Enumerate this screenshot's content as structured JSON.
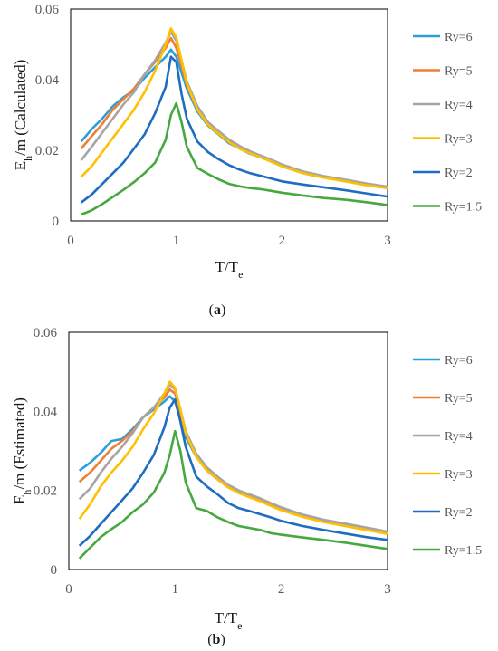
{
  "chart_data": [
    {
      "type": "line",
      "xlabel": "T/T",
      "xlabel_sub": "e",
      "ylabel": "E",
      "ylabel_sub": "h",
      "ylabel_rest": "/m (Calculated)",
      "caption": [
        "(",
        "a",
        ")"
      ],
      "xlim": [
        0,
        3
      ],
      "ylim": [
        0,
        0.06
      ],
      "xticks": [
        "0",
        "1",
        "2",
        "3"
      ],
      "yticks": [
        "0",
        "0.02",
        "0.04",
        "0.06"
      ],
      "grid": false,
      "legend_position": "right",
      "series": [
        {
          "name": "Ry=6",
          "color": "#2e9fd8",
          "x": [
            0.1,
            0.2,
            0.3,
            0.4,
            0.5,
            0.6,
            0.7,
            0.8,
            0.9,
            0.95,
            1.0,
            1.05,
            1.1,
            1.2,
            1.3,
            1.4,
            1.5,
            1.6,
            1.7,
            1.8,
            1.9,
            2.0,
            2.2,
            2.4,
            2.6,
            2.8,
            3.0
          ],
          "y": [
            0.0225,
            0.026,
            0.029,
            0.0325,
            0.035,
            0.037,
            0.0405,
            0.0435,
            0.0465,
            0.0485,
            0.0465,
            0.042,
            0.0375,
            0.031,
            0.027,
            0.0245,
            0.022,
            0.0205,
            0.019,
            0.018,
            0.0168,
            0.0155,
            0.0135,
            0.0123,
            0.0113,
            0.0102,
            0.0093
          ]
        },
        {
          "name": "Ry=5",
          "color": "#f07f33",
          "x": [
            0.1,
            0.2,
            0.3,
            0.4,
            0.5,
            0.6,
            0.7,
            0.8,
            0.9,
            0.95,
            1.0,
            1.05,
            1.1,
            1.2,
            1.3,
            1.4,
            1.5,
            1.6,
            1.7,
            1.8,
            1.9,
            2.0,
            2.2,
            2.4,
            2.6,
            2.8,
            3.0
          ],
          "y": [
            0.0205,
            0.024,
            0.0275,
            0.0315,
            0.0345,
            0.0375,
            0.0415,
            0.045,
            0.049,
            0.0518,
            0.049,
            0.044,
            0.0385,
            0.0315,
            0.0275,
            0.025,
            0.0225,
            0.0208,
            0.0193,
            0.0182,
            0.017,
            0.0157,
            0.0137,
            0.0125,
            0.0115,
            0.0104,
            0.0095
          ]
        },
        {
          "name": "Ry=4",
          "color": "#a5a5a5",
          "x": [
            0.1,
            0.2,
            0.3,
            0.4,
            0.5,
            0.6,
            0.7,
            0.8,
            0.9,
            0.95,
            1.0,
            1.05,
            1.1,
            1.2,
            1.3,
            1.4,
            1.5,
            1.6,
            1.7,
            1.8,
            1.9,
            2.0,
            2.2,
            2.4,
            2.6,
            2.8,
            3.0
          ],
          "y": [
            0.0172,
            0.021,
            0.025,
            0.029,
            0.033,
            0.0365,
            0.0415,
            0.0455,
            0.0505,
            0.0535,
            0.051,
            0.0455,
            0.0395,
            0.0325,
            0.028,
            0.0255,
            0.023,
            0.0212,
            0.0197,
            0.0185,
            0.0173,
            0.016,
            0.014,
            0.0127,
            0.0117,
            0.0106,
            0.0097
          ]
        },
        {
          "name": "Ry=3",
          "color": "#ffc000",
          "x": [
            0.1,
            0.2,
            0.3,
            0.4,
            0.5,
            0.6,
            0.7,
            0.8,
            0.9,
            0.95,
            1.0,
            1.05,
            1.1,
            1.2,
            1.3,
            1.4,
            1.5,
            1.6,
            1.7,
            1.8,
            1.9,
            2.0,
            2.2,
            2.4,
            2.6,
            2.8,
            3.0
          ],
          "y": [
            0.0125,
            0.0155,
            0.0195,
            0.0235,
            0.0275,
            0.0315,
            0.0365,
            0.0425,
            0.05,
            0.0545,
            0.052,
            0.0455,
            0.039,
            0.0315,
            0.0272,
            0.0247,
            0.0223,
            0.0205,
            0.0191,
            0.018,
            0.0168,
            0.0155,
            0.0135,
            0.0122,
            0.0112,
            0.0101,
            0.0093
          ]
        },
        {
          "name": "Ry=2",
          "color": "#1f6dc0",
          "x": [
            0.1,
            0.2,
            0.3,
            0.4,
            0.5,
            0.6,
            0.7,
            0.8,
            0.9,
            0.95,
            1.0,
            1.05,
            1.1,
            1.2,
            1.3,
            1.4,
            1.5,
            1.6,
            1.7,
            1.8,
            1.9,
            2.0,
            2.2,
            2.4,
            2.6,
            2.8,
            3.0
          ],
          "y": [
            0.0052,
            0.0075,
            0.0105,
            0.0135,
            0.0165,
            0.0205,
            0.0245,
            0.0305,
            0.038,
            0.0465,
            0.045,
            0.036,
            0.029,
            0.0225,
            0.0195,
            0.0175,
            0.0158,
            0.0145,
            0.0135,
            0.0128,
            0.012,
            0.0112,
            0.0103,
            0.0095,
            0.0087,
            0.0078,
            0.0069
          ]
        },
        {
          "name": "Ry=1.5",
          "color": "#46a83e",
          "x": [
            0.1,
            0.2,
            0.3,
            0.4,
            0.5,
            0.6,
            0.7,
            0.8,
            0.9,
            0.95,
            1.0,
            1.05,
            1.1,
            1.2,
            1.3,
            1.4,
            1.5,
            1.6,
            1.7,
            1.8,
            1.9,
            2.0,
            2.2,
            2.4,
            2.6,
            2.8,
            3.0
          ],
          "y": [
            0.0018,
            0.003,
            0.0048,
            0.0068,
            0.0088,
            0.011,
            0.0135,
            0.0165,
            0.023,
            0.03,
            0.0333,
            0.028,
            0.021,
            0.015,
            0.0133,
            0.0118,
            0.0105,
            0.0098,
            0.0093,
            0.009,
            0.0085,
            0.008,
            0.0072,
            0.0065,
            0.006,
            0.0053,
            0.0045
          ]
        }
      ]
    },
    {
      "type": "line",
      "xlabel": "T/T",
      "xlabel_sub": "e",
      "ylabel": "E",
      "ylabel_sub": "h",
      "ylabel_rest": "/m (Estimated)",
      "caption": [
        "(",
        "b",
        ")"
      ],
      "xlim": [
        0,
        3
      ],
      "ylim": [
        0,
        0.06
      ],
      "xticks": [
        "0",
        "1",
        "2",
        "3"
      ],
      "yticks": [
        "0",
        "0.02",
        "0.04",
        "0.06"
      ],
      "grid": false,
      "legend_position": "right",
      "series": [
        {
          "name": "Ry=6",
          "color": "#2e9fd8",
          "x": [
            0.1,
            0.2,
            0.3,
            0.4,
            0.5,
            0.6,
            0.7,
            0.8,
            0.9,
            0.95,
            1.0,
            1.05,
            1.1,
            1.2,
            1.3,
            1.4,
            1.5,
            1.6,
            1.7,
            1.8,
            1.9,
            2.0,
            2.2,
            2.4,
            2.6,
            2.8,
            3.0
          ],
          "y": [
            0.025,
            0.027,
            0.0295,
            0.0325,
            0.033,
            0.0355,
            0.0385,
            0.0405,
            0.0425,
            0.0438,
            0.0425,
            0.038,
            0.0335,
            0.0285,
            0.025,
            0.0228,
            0.0208,
            0.0195,
            0.0185,
            0.0175,
            0.0163,
            0.0152,
            0.0134,
            0.0122,
            0.0112,
            0.0102,
            0.0092
          ]
        },
        {
          "name": "Ry=5",
          "color": "#f07f33",
          "x": [
            0.1,
            0.2,
            0.3,
            0.4,
            0.5,
            0.6,
            0.7,
            0.8,
            0.9,
            0.95,
            1.0,
            1.05,
            1.1,
            1.2,
            1.3,
            1.4,
            1.5,
            1.6,
            1.7,
            1.8,
            1.9,
            2.0,
            2.2,
            2.4,
            2.6,
            2.8,
            3.0
          ],
          "y": [
            0.0222,
            0.0245,
            0.0275,
            0.0305,
            0.0325,
            0.035,
            0.0385,
            0.041,
            0.0435,
            0.0455,
            0.0445,
            0.0395,
            0.0345,
            0.029,
            0.0255,
            0.0232,
            0.0211,
            0.0198,
            0.0188,
            0.0178,
            0.0166,
            0.0155,
            0.0137,
            0.0124,
            0.0114,
            0.0104,
            0.0094
          ]
        },
        {
          "name": "Ry=4",
          "color": "#a5a5a5",
          "x": [
            0.1,
            0.2,
            0.3,
            0.4,
            0.5,
            0.6,
            0.7,
            0.8,
            0.9,
            0.95,
            1.0,
            1.05,
            1.1,
            1.2,
            1.3,
            1.4,
            1.5,
            1.6,
            1.7,
            1.8,
            1.9,
            2.0,
            2.2,
            2.4,
            2.6,
            2.8,
            3.0
          ],
          "y": [
            0.0178,
            0.0205,
            0.0245,
            0.028,
            0.031,
            0.0345,
            0.0385,
            0.041,
            0.0445,
            0.0468,
            0.0455,
            0.0405,
            0.035,
            0.0293,
            0.0258,
            0.0235,
            0.0214,
            0.02,
            0.019,
            0.018,
            0.0168,
            0.0157,
            0.0139,
            0.0126,
            0.0116,
            0.0106,
            0.0096
          ]
        },
        {
          "name": "Ry=3",
          "color": "#ffc000",
          "x": [
            0.1,
            0.2,
            0.3,
            0.4,
            0.5,
            0.6,
            0.7,
            0.8,
            0.9,
            0.95,
            1.0,
            1.05,
            1.1,
            1.2,
            1.3,
            1.4,
            1.5,
            1.6,
            1.7,
            1.8,
            1.9,
            2.0,
            2.2,
            2.4,
            2.6,
            2.8,
            3.0
          ],
          "y": [
            0.0128,
            0.0165,
            0.021,
            0.0245,
            0.0275,
            0.031,
            0.0355,
            0.0395,
            0.0445,
            0.0475,
            0.046,
            0.0405,
            0.0345,
            0.0285,
            0.025,
            0.0228,
            0.0208,
            0.0193,
            0.0183,
            0.0173,
            0.0161,
            0.015,
            0.0133,
            0.012,
            0.011,
            0.01,
            0.009
          ]
        },
        {
          "name": "Ry=2",
          "color": "#1f6dc0",
          "x": [
            0.1,
            0.2,
            0.3,
            0.4,
            0.5,
            0.6,
            0.7,
            0.8,
            0.9,
            0.95,
            1.0,
            1.05,
            1.1,
            1.2,
            1.3,
            1.4,
            1.5,
            1.6,
            1.7,
            1.8,
            1.9,
            2.0,
            2.2,
            2.4,
            2.6,
            2.8,
            3.0
          ],
          "y": [
            0.006,
            0.0085,
            0.0115,
            0.0145,
            0.0175,
            0.0205,
            0.0245,
            0.029,
            0.036,
            0.041,
            0.043,
            0.0375,
            0.031,
            0.0235,
            0.021,
            0.019,
            0.0168,
            0.0155,
            0.0148,
            0.014,
            0.0132,
            0.0123,
            0.011,
            0.01,
            0.0091,
            0.0082,
            0.0075
          ]
        },
        {
          "name": "Ry=1.5",
          "color": "#46a83e",
          "x": [
            0.1,
            0.2,
            0.3,
            0.4,
            0.5,
            0.6,
            0.7,
            0.8,
            0.9,
            0.95,
            1.0,
            1.05,
            1.1,
            1.2,
            1.3,
            1.4,
            1.5,
            1.6,
            1.7,
            1.8,
            1.9,
            2.0,
            2.2,
            2.4,
            2.6,
            2.8,
            3.0
          ],
          "y": [
            0.0028,
            0.0055,
            0.0082,
            0.0102,
            0.012,
            0.0145,
            0.0165,
            0.0195,
            0.0245,
            0.029,
            0.035,
            0.03,
            0.022,
            0.0155,
            0.0148,
            0.0132,
            0.012,
            0.011,
            0.0105,
            0.01,
            0.0092,
            0.0088,
            0.0081,
            0.0075,
            0.0068,
            0.006,
            0.0052
          ]
        }
      ]
    }
  ]
}
